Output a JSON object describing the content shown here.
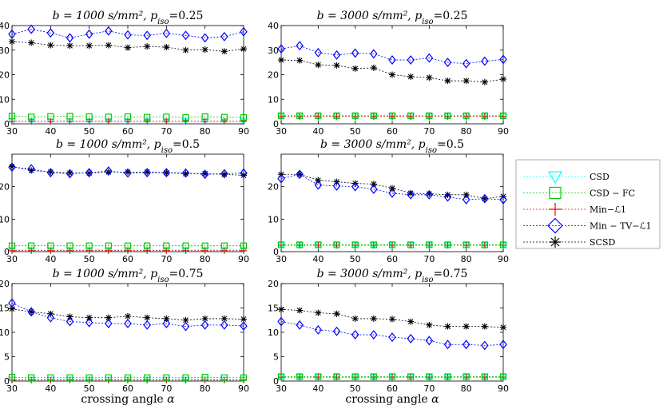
{
  "chart_data": {
    "type": "line",
    "x": [
      30,
      35,
      40,
      45,
      50,
      55,
      60,
      65,
      70,
      75,
      80,
      85,
      90
    ],
    "xlim": [
      30,
      90
    ],
    "xticks": [
      30,
      40,
      50,
      60,
      70,
      80,
      90
    ],
    "xlabel": "crossing angle α",
    "series_styles": {
      "CSD": {
        "label": "CSD",
        "color": "#00ffff",
        "marker": "triangle-down"
      },
      "CSDFC": {
        "label": "CSD − FC",
        "color": "#00cc00",
        "marker": "square"
      },
      "MinL1": {
        "label": "Min−ℒ1",
        "color": "#ff0000",
        "marker": "plus"
      },
      "MinTV": {
        "label": "Min − TV−ℒ1",
        "color": "#0000ff",
        "marker": "diamond"
      },
      "SCSD": {
        "label": "SCSD",
        "color": "#000000",
        "marker": "asterisk"
      }
    },
    "legend_position": "right",
    "panels": [
      {
        "title": "b = 1000 s/mm², p_iso=0.25",
        "ylim": [
          0,
          40
        ],
        "yticks": [
          0,
          10,
          20,
          30,
          40
        ],
        "series": [
          {
            "key": "CSD",
            "values": [
              1,
              1,
              1,
              1,
              1,
              1,
              1,
              1,
              1,
              1,
              1,
              1,
              1
            ]
          },
          {
            "key": "CSDFC",
            "values": [
              3.2,
              2.8,
              3.0,
              3.1,
              2.9,
              2.8,
              2.9,
              2.7,
              2.8,
              2.6,
              2.9,
              2.7,
              2.6
            ]
          },
          {
            "key": "MinL1",
            "values": [
              1,
              1,
              1,
              1,
              1,
              1,
              1,
              1,
              1,
              1,
              1,
              1,
              1
            ]
          },
          {
            "key": "MinTV",
            "values": [
              36.5,
              38.5,
              37,
              35,
              36.5,
              37.8,
              36.2,
              36,
              36.8,
              36,
              35,
              35.5,
              37.5
            ]
          },
          {
            "key": "SCSD",
            "values": [
              33.5,
              33,
              32,
              31.8,
              31.8,
              32,
              31,
              31.5,
              31.2,
              30,
              30.2,
              29.5,
              30.5
            ]
          }
        ]
      },
      {
        "title": "b = 3000 s/mm², p_iso=0.25",
        "ylim": [
          0,
          40
        ],
        "yticks": [
          0,
          10,
          20,
          30,
          40
        ],
        "series": [
          {
            "key": "CSD",
            "values": [
              3,
              3,
              3,
              3,
              3,
              3,
              3,
              3,
              3,
              3,
              3,
              3,
              3
            ]
          },
          {
            "key": "CSDFC",
            "values": [
              3.3,
              3.3,
              3.3,
              3.3,
              3.3,
              3.3,
              3.3,
              3.3,
              3.3,
              3.3,
              3.3,
              3.3,
              3.3
            ]
          },
          {
            "key": "MinL1",
            "values": [
              3,
              3,
              3,
              3,
              3,
              3,
              3,
              3,
              3,
              3,
              3,
              3,
              3
            ]
          },
          {
            "key": "MinTV",
            "values": [
              30.5,
              31.8,
              29,
              28,
              28.8,
              28.5,
              26,
              26,
              26.8,
              25,
              24.5,
              25.5,
              26.2
            ]
          },
          {
            "key": "SCSD",
            "values": [
              26,
              25.8,
              24,
              23.8,
              22.5,
              22.8,
              20,
              19.2,
              18.8,
              17.5,
              17.5,
              17,
              18.2
            ]
          }
        ]
      },
      {
        "title": "b = 1000 s/mm², p_iso=0.5",
        "ylim": [
          0,
          30
        ],
        "yticks": [
          0,
          10,
          20
        ],
        "series": [
          {
            "key": "CSD",
            "values": [
              0.5,
              0.5,
              0.5,
              0.5,
              0.5,
              0.5,
              0.5,
              0.5,
              0.5,
              0.5,
              0.5,
              0.5,
              0.5
            ]
          },
          {
            "key": "CSDFC",
            "values": [
              1.8,
              1.8,
              1.8,
              1.8,
              1.8,
              1.8,
              1.8,
              1.8,
              1.8,
              1.8,
              1.8,
              1.8,
              1.8
            ]
          },
          {
            "key": "MinL1",
            "values": [
              0.3,
              0.3,
              0.3,
              0.3,
              0.3,
              0.3,
              0.3,
              0.3,
              0.3,
              0.3,
              0.3,
              0.3,
              0.3
            ]
          },
          {
            "key": "MinTV",
            "values": [
              26,
              25.5,
              24.3,
              24,
              24.3,
              24.8,
              24.2,
              24.3,
              24.3,
              24.2,
              23.8,
              24,
              24.2
            ]
          },
          {
            "key": "SCSD",
            "values": [
              26.2,
              25,
              24.5,
              24.2,
              24.2,
              24.5,
              24.5,
              24.5,
              24.3,
              24,
              24,
              23.8,
              23.5
            ]
          }
        ]
      },
      {
        "title": "b = 3000 s/mm², p_iso=0.5",
        "ylim": [
          0,
          30
        ],
        "yticks": [
          0,
          10,
          20
        ],
        "series": [
          {
            "key": "CSD",
            "values": [
              2,
              2,
              2,
              2,
              2,
              2,
              2,
              2,
              2,
              2,
              2,
              2,
              2
            ]
          },
          {
            "key": "CSDFC",
            "values": [
              2.1,
              2.1,
              2.1,
              2.1,
              2.1,
              2.1,
              2.1,
              2.1,
              2.1,
              2.1,
              2.1,
              2.1,
              2.1
            ]
          },
          {
            "key": "MinL1",
            "values": [
              2,
              2,
              2,
              2,
              2,
              2,
              2,
              2,
              2,
              2,
              2,
              2,
              2
            ]
          },
          {
            "key": "MinTV",
            "values": [
              22.5,
              23.8,
              20.5,
              20.2,
              20,
              19.2,
              18,
              17.5,
              17.5,
              16.8,
              16,
              16.3,
              16
            ]
          },
          {
            "key": "SCSD",
            "values": [
              23.8,
              23.8,
              22,
              21.5,
              21,
              20.8,
              19.5,
              18,
              17.8,
              17.5,
              17.5,
              16.3,
              17
            ]
          }
        ]
      },
      {
        "title": "b = 1000 s/mm², p_iso=0.75",
        "ylim": [
          0,
          20
        ],
        "yticks": [
          0,
          5,
          10,
          15,
          20
        ],
        "series": [
          {
            "key": "CSD",
            "values": [
              0.3,
              0.3,
              0.3,
              0.3,
              0.3,
              0.3,
              0.3,
              0.3,
              0.3,
              0.3,
              0.3,
              0.3,
              0.3
            ]
          },
          {
            "key": "CSDFC",
            "values": [
              0.8,
              0.7,
              0.7,
              0.7,
              0.7,
              0.7,
              0.7,
              0.7,
              0.7,
              0.7,
              0.8,
              0.7,
              0.7
            ]
          },
          {
            "key": "MinL1",
            "values": [
              0.2,
              0.2,
              0.2,
              0.2,
              0.2,
              0.2,
              0.2,
              0.2,
              0.2,
              0.2,
              0.2,
              0.2,
              0.2
            ]
          },
          {
            "key": "MinTV",
            "values": [
              16,
              14.2,
              13,
              12.2,
              12,
              11.8,
              11.8,
              11.5,
              11.8,
              11.2,
              11.5,
              11.5,
              11.3
            ]
          },
          {
            "key": "SCSD",
            "values": [
              14.8,
              14.2,
              13.8,
              13.2,
              13,
              13,
              13.3,
              13,
              12.8,
              12.5,
              12.8,
              12.8,
              12.7
            ]
          }
        ]
      },
      {
        "title": "b = 3000 s/mm², p_iso=0.75",
        "ylim": [
          0,
          20
        ],
        "yticks": [
          0,
          5,
          10,
          15,
          20
        ],
        "series": [
          {
            "key": "CSD",
            "values": [
              0.8,
              0.8,
              0.8,
              0.8,
              0.8,
              0.8,
              0.8,
              0.8,
              0.8,
              0.8,
              0.8,
              0.8,
              0.8
            ]
          },
          {
            "key": "CSDFC",
            "values": [
              0.9,
              0.9,
              0.9,
              0.9,
              0.9,
              0.9,
              0.9,
              0.9,
              0.9,
              0.9,
              0.9,
              0.9,
              0.9
            ]
          },
          {
            "key": "MinL1",
            "values": [
              0.8,
              0.8,
              0.8,
              0.8,
              0.8,
              0.8,
              0.8,
              0.8,
              0.8,
              0.8,
              0.8,
              0.8,
              0.8
            ]
          },
          {
            "key": "MinTV",
            "values": [
              12.2,
              11.5,
              10.5,
              10.2,
              9.5,
              9.5,
              9,
              8.7,
              8.3,
              7.5,
              7.5,
              7.3,
              7.5
            ]
          },
          {
            "key": "SCSD",
            "values": [
              14.7,
              14.5,
              14,
              13.8,
              12.8,
              12.8,
              12.7,
              12.2,
              11.5,
              11.2,
              11.2,
              11.2,
              11
            ]
          }
        ]
      }
    ]
  }
}
